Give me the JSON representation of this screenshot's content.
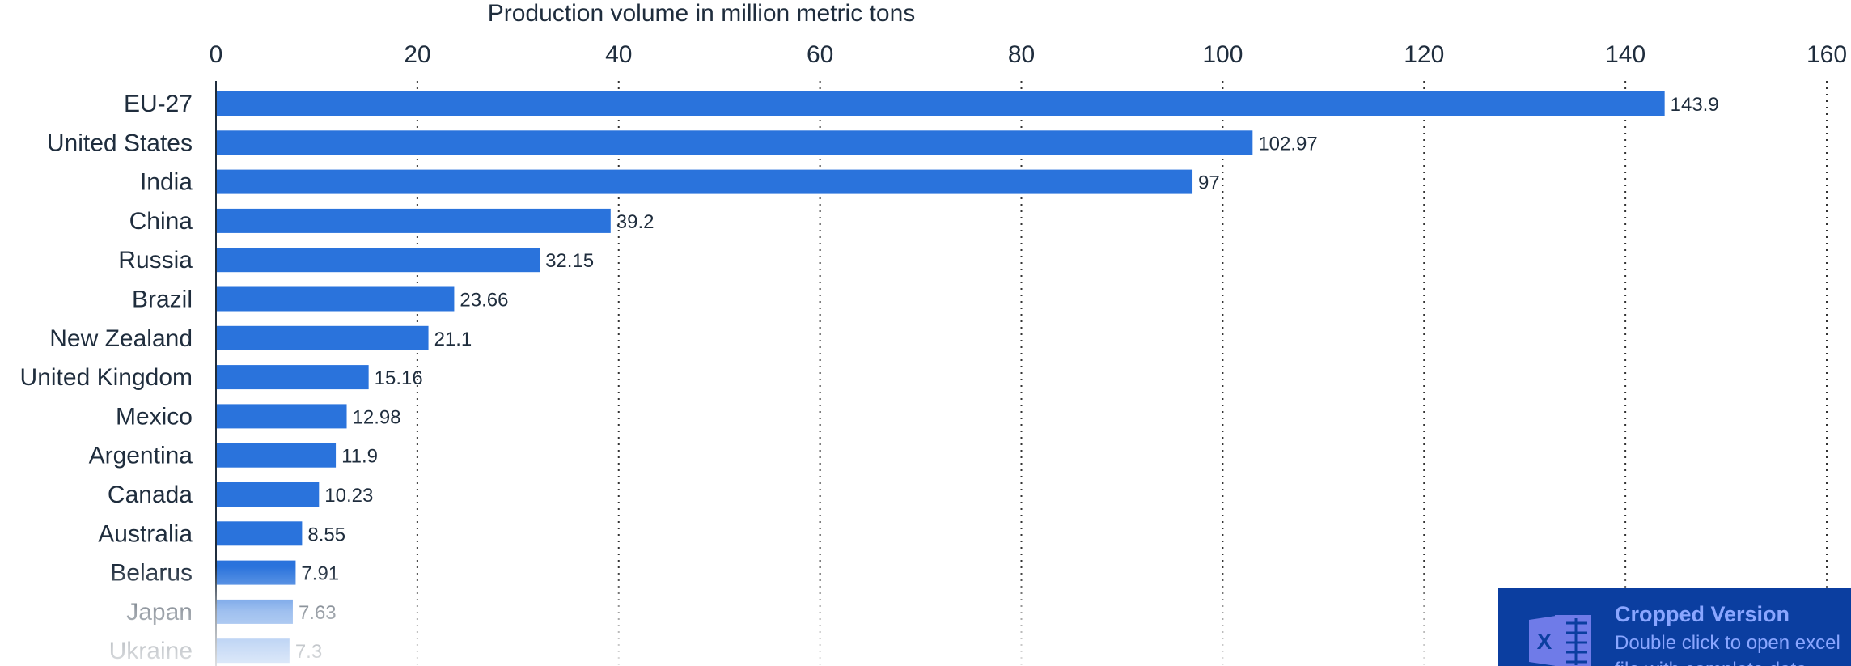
{
  "chart_data": {
    "type": "bar",
    "orientation": "horizontal",
    "xlabel": "Production volume in million metric tons",
    "xlim": [
      0,
      160
    ],
    "xticks": [
      0,
      20,
      40,
      60,
      80,
      100,
      120,
      140,
      160
    ],
    "grid": "vertical dotted",
    "categories": [
      "EU-27",
      "United States",
      "India",
      "China",
      "Russia",
      "Brazil",
      "New Zealand",
      "United Kingdom",
      "Mexico",
      "Argentina",
      "Canada",
      "Australia",
      "Belarus",
      "Japan",
      "Ukraine"
    ],
    "values": [
      143.9,
      102.97,
      97,
      39.2,
      32.15,
      23.66,
      21.1,
      15.16,
      12.98,
      11.9,
      10.23,
      8.55,
      7.91,
      7.63,
      7.3
    ],
    "labels": [
      "143.9",
      "102.97",
      "97",
      "39.2",
      "32.15",
      "23.66",
      "21.1",
      "15.16",
      "12.98",
      "11.9",
      "10.23",
      "8.55",
      "7.91",
      "7.63",
      "7.3"
    ],
    "bar_color": "#2a73dc"
  },
  "overlay": {
    "title": "Cropped Version",
    "subtitle": "Double click to open excel",
    "subtitle2": "file with complete data",
    "icon": "excel-icon",
    "background": "#0b3ea0",
    "text_color": "#8aa6ff"
  }
}
